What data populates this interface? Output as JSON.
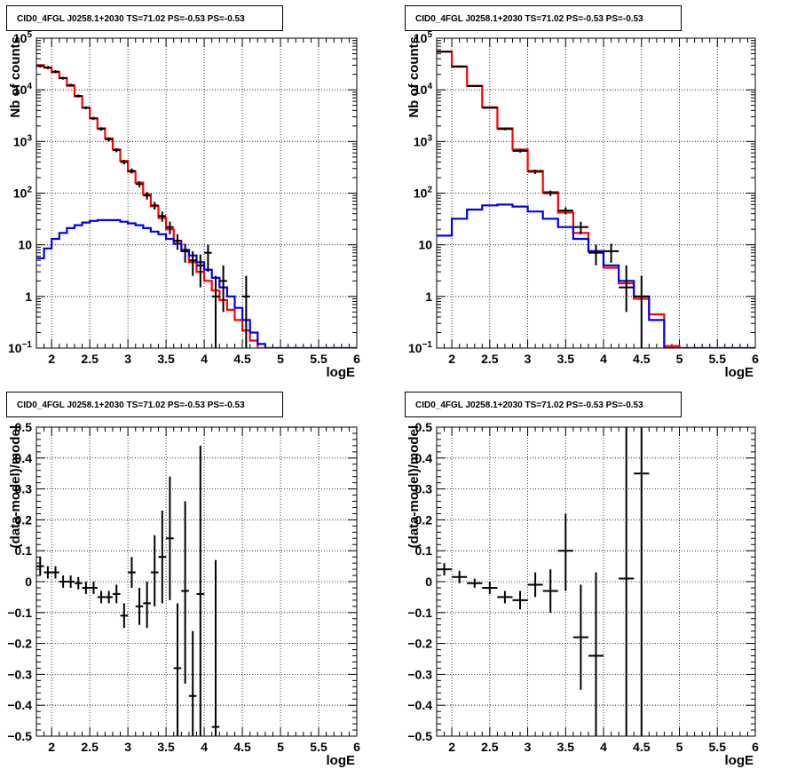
{
  "chart_data": [
    {
      "id": "counts-left",
      "type": "line",
      "title": "CID0_4FGL J0258.1+2030 TS=71.02 PS=-0.53 PS=-0.53",
      "xlabel": "logE",
      "ylabel": "Nb of counts",
      "xlim": [
        1.8,
        6.0
      ],
      "ylim": [
        0.1,
        100000
      ],
      "yscale": "log",
      "grid": true,
      "x_ticks": [
        {
          "v": 2,
          "label": "2"
        },
        {
          "v": 2.5,
          "label": "2.5"
        },
        {
          "v": 3,
          "label": "3"
        },
        {
          "v": 3.5,
          "label": "3.5"
        },
        {
          "v": 4,
          "label": "4"
        },
        {
          "v": 4.5,
          "label": "4.5"
        },
        {
          "v": 5,
          "label": "5"
        },
        {
          "v": 5.5,
          "label": "5.5"
        },
        {
          "v": 6,
          "label": "6"
        }
      ],
      "y_ticks": [
        {
          "v": 0.1,
          "base": "10",
          "exp": "−1"
        },
        {
          "v": 1,
          "base": "1",
          "exp": ""
        },
        {
          "v": 10,
          "base": "10",
          "exp": ""
        },
        {
          "v": 100,
          "base": "10",
          "exp": "2"
        },
        {
          "v": 1000,
          "base": "10",
          "exp": "3"
        },
        {
          "v": 10000,
          "base": "10",
          "exp": "4"
        },
        {
          "v": 100000,
          "base": "10",
          "exp": "5"
        }
      ],
      "bin_edges": [
        1.8,
        1.9,
        2.0,
        2.1,
        2.2,
        2.3,
        2.4,
        2.5,
        2.6,
        2.7,
        2.8,
        2.9,
        3.0,
        3.1,
        3.2,
        3.3,
        3.4,
        3.5,
        3.6,
        3.7,
        3.8,
        3.9,
        4.0,
        4.1,
        4.2,
        4.3,
        4.4,
        4.5,
        4.6,
        4.7,
        4.8,
        4.9,
        5.0,
        5.1,
        5.2,
        5.3,
        5.4,
        5.5,
        5.6,
        5.7,
        5.8,
        5.9,
        6.0
      ],
      "series": [
        {
          "color": "#ff0000",
          "values": [
            30000,
            27000,
            22000,
            17000,
            12000,
            7500,
            4500,
            2800,
            1800,
            1150,
            700,
            420,
            260,
            160,
            95,
            56,
            33,
            20,
            12,
            7.5,
            4.6,
            3.0,
            2.0,
            1.3,
            0.85,
            0.55,
            0.35,
            0.22,
            0.14,
            0.1,
            0.1,
            0.1,
            0.1,
            0.1,
            0.1,
            0.1,
            0.1,
            0.1,
            0.1,
            0.1,
            0.1,
            0.1
          ]
        },
        {
          "color": "#0000ee",
          "values": [
            5.5,
            8.5,
            13,
            17,
            21,
            24,
            27,
            29,
            30,
            30,
            30,
            28,
            26,
            24,
            21,
            18,
            16,
            13,
            10.5,
            8,
            6.2,
            4.6,
            3.3,
            2.3,
            1.5,
            1.0,
            0.6,
            0.35,
            0.2,
            0.12,
            0.1,
            0.1,
            0.1,
            0.1,
            0.1,
            0.1,
            0.1,
            0.1,
            0.1,
            0.1,
            0.1,
            0.1
          ]
        }
      ],
      "points": [
        {
          "x": 1.85,
          "y": 29000,
          "lo": 27000,
          "hi": 31000
        },
        {
          "x": 1.95,
          "y": 27000,
          "lo": 25000,
          "hi": 29000
        },
        {
          "x": 2.05,
          "y": 22500,
          "lo": 21000,
          "hi": 24000
        },
        {
          "x": 2.15,
          "y": 16800,
          "lo": 15800,
          "hi": 17800
        },
        {
          "x": 2.25,
          "y": 12300,
          "lo": 11500,
          "hi": 13100
        },
        {
          "x": 2.35,
          "y": 7600,
          "lo": 7100,
          "hi": 8100
        },
        {
          "x": 2.45,
          "y": 4500,
          "lo": 4200,
          "hi": 4800
        },
        {
          "x": 2.55,
          "y": 2800,
          "lo": 2600,
          "hi": 3000
        },
        {
          "x": 2.65,
          "y": 1750,
          "lo": 1620,
          "hi": 1880
        },
        {
          "x": 2.75,
          "y": 1100,
          "lo": 1000,
          "hi": 1200
        },
        {
          "x": 2.85,
          "y": 680,
          "lo": 620,
          "hi": 740
        },
        {
          "x": 2.95,
          "y": 400,
          "lo": 360,
          "hi": 440
        },
        {
          "x": 3.05,
          "y": 270,
          "lo": 240,
          "hi": 300
        },
        {
          "x": 3.15,
          "y": 150,
          "lo": 130,
          "hi": 170
        },
        {
          "x": 3.25,
          "y": 90,
          "lo": 75,
          "hi": 105
        },
        {
          "x": 3.35,
          "y": 58,
          "lo": 48,
          "hi": 68
        },
        {
          "x": 3.45,
          "y": 36,
          "lo": 28,
          "hi": 44
        },
        {
          "x": 3.55,
          "y": 22,
          "lo": 16,
          "hi": 28
        },
        {
          "x": 3.65,
          "y": 12,
          "lo": 8,
          "hi": 16
        },
        {
          "x": 3.75,
          "y": 7.5,
          "lo": 4.5,
          "hi": 10.5
        },
        {
          "x": 3.85,
          "y": 5,
          "lo": 2.5,
          "hi": 7.5
        },
        {
          "x": 3.95,
          "y": 4,
          "lo": 1.5,
          "hi": 6.5
        },
        {
          "x": 4.05,
          "y": 7,
          "lo": 3,
          "hi": 10
        },
        {
          "x": 4.15,
          "y": 1,
          "lo": 0.1,
          "hi": 2.5
        },
        {
          "x": 4.25,
          "y": 2,
          "lo": 0.5,
          "hi": 4
        },
        {
          "x": 4.55,
          "y": 1,
          "lo": 0.1,
          "hi": 2.5
        }
      ]
    },
    {
      "id": "counts-right",
      "type": "line",
      "title": "CID0_4FGL J0258.1+2030 TS=71.02 PS=-0.53 PS=-0.53",
      "xlabel": "logE",
      "ylabel": "Nb of counts",
      "xlim": [
        1.8,
        6.0
      ],
      "ylim": [
        0.1,
        100000
      ],
      "yscale": "log",
      "grid": true,
      "x_ticks": [
        {
          "v": 2,
          "label": "2"
        },
        {
          "v": 2.5,
          "label": "2.5"
        },
        {
          "v": 3,
          "label": "3"
        },
        {
          "v": 3.5,
          "label": "3.5"
        },
        {
          "v": 4,
          "label": "4"
        },
        {
          "v": 4.5,
          "label": "4.5"
        },
        {
          "v": 5,
          "label": "5"
        },
        {
          "v": 5.5,
          "label": "5.5"
        },
        {
          "v": 6,
          "label": "6"
        }
      ],
      "y_ticks": [
        {
          "v": 0.1,
          "base": "10",
          "exp": "−1"
        },
        {
          "v": 1,
          "base": "1",
          "exp": ""
        },
        {
          "v": 10,
          "base": "10",
          "exp": ""
        },
        {
          "v": 100,
          "base": "10",
          "exp": "2"
        },
        {
          "v": 1000,
          "base": "10",
          "exp": "3"
        },
        {
          "v": 10000,
          "base": "10",
          "exp": "4"
        },
        {
          "v": 100000,
          "base": "10",
          "exp": "5"
        }
      ],
      "bin_edges": [
        1.8,
        2.0,
        2.2,
        2.4,
        2.6,
        2.8,
        3.0,
        3.2,
        3.4,
        3.6,
        3.8,
        4.0,
        4.2,
        4.4,
        4.6,
        4.8,
        5.0,
        5.2,
        5.4,
        5.6,
        5.8,
        6.0
      ],
      "series": [
        {
          "color": "#ff0000",
          "values": [
            55000,
            28000,
            12000,
            4600,
            1800,
            700,
            270,
            105,
            42,
            17,
            7.5,
            3.6,
            1.8,
            0.9,
            0.45,
            0.11,
            0.1,
            0.1,
            0.1,
            0.1,
            0.1
          ]
        },
        {
          "color": "#0000ee",
          "values": [
            15,
            32,
            48,
            58,
            60,
            55,
            44,
            32,
            22,
            13,
            7.5,
            4,
            2,
            1,
            0.35,
            0.1,
            0.1,
            0.1,
            0.1,
            0.1,
            0.1
          ]
        }
      ],
      "points": [
        {
          "x": 1.9,
          "y": 55000,
          "lo": 53000,
          "hi": 57000
        },
        {
          "x": 2.1,
          "y": 28500,
          "lo": 27500,
          "hi": 29500
        },
        {
          "x": 2.3,
          "y": 11800,
          "lo": 11300,
          "hi": 12300
        },
        {
          "x": 2.5,
          "y": 4500,
          "lo": 4300,
          "hi": 4700
        },
        {
          "x": 2.7,
          "y": 1750,
          "lo": 1650,
          "hi": 1850
        },
        {
          "x": 2.9,
          "y": 660,
          "lo": 610,
          "hi": 710
        },
        {
          "x": 3.1,
          "y": 260,
          "lo": 235,
          "hi": 285
        },
        {
          "x": 3.3,
          "y": 100,
          "lo": 88,
          "hi": 112
        },
        {
          "x": 3.5,
          "y": 46,
          "lo": 39,
          "hi": 53
        },
        {
          "x": 3.7,
          "y": 22,
          "lo": 16,
          "hi": 28
        },
        {
          "x": 3.9,
          "y": 7,
          "lo": 4,
          "hi": 10
        },
        {
          "x": 4.1,
          "y": 7.5,
          "lo": 4.5,
          "hi": 10.5
        },
        {
          "x": 4.3,
          "y": 1.5,
          "lo": 0.5,
          "hi": 4
        },
        {
          "x": 4.5,
          "y": 1,
          "lo": 0.1,
          "hi": 2.5
        }
      ]
    },
    {
      "id": "residual-left",
      "type": "scatter",
      "title": "CID0_4FGL J0258.1+2030 TS=71.02 PS=-0.53 PS=-0.53",
      "xlabel": "logE",
      "ylabel": "(data-model)/model",
      "xlim": [
        1.8,
        6.0
      ],
      "ylim": [
        -0.5,
        0.5
      ],
      "yscale": "linear",
      "grid": true,
      "x_ticks": [
        {
          "v": 2,
          "label": "2"
        },
        {
          "v": 2.5,
          "label": "2.5"
        },
        {
          "v": 3,
          "label": "3"
        },
        {
          "v": 3.5,
          "label": "3.5"
        },
        {
          "v": 4,
          "label": "4"
        },
        {
          "v": 4.5,
          "label": "4.5"
        },
        {
          "v": 5,
          "label": "5"
        },
        {
          "v": 5.5,
          "label": "5.5"
        },
        {
          "v": 6,
          "label": "6"
        }
      ],
      "y_ticks": [
        {
          "v": -0.5,
          "label": "−0.5"
        },
        {
          "v": -0.4,
          "label": "−0.4"
        },
        {
          "v": -0.3,
          "label": "−0.3"
        },
        {
          "v": -0.2,
          "label": "−0.2"
        },
        {
          "v": -0.1,
          "label": "−0.1"
        },
        {
          "v": 0,
          "label": "0"
        },
        {
          "v": 0.1,
          "label": "0.1"
        },
        {
          "v": 0.2,
          "label": "0.2"
        },
        {
          "v": 0.3,
          "label": "0.3"
        },
        {
          "v": 0.4,
          "label": "0.4"
        },
        {
          "v": 0.5,
          "label": "0.5"
        }
      ],
      "xerr": 0.05,
      "points": [
        {
          "x": 1.85,
          "y": 0.05,
          "lo": 0.02,
          "hi": 0.08
        },
        {
          "x": 1.95,
          "y": 0.03,
          "lo": 0.01,
          "hi": 0.05
        },
        {
          "x": 2.05,
          "y": 0.03,
          "lo": 0.01,
          "hi": 0.05
        },
        {
          "x": 2.15,
          "y": 0.0,
          "lo": -0.02,
          "hi": 0.02
        },
        {
          "x": 2.25,
          "y": 0.0,
          "lo": -0.02,
          "hi": 0.02
        },
        {
          "x": 2.35,
          "y": -0.005,
          "lo": -0.025,
          "hi": 0.015
        },
        {
          "x": 2.45,
          "y": -0.02,
          "lo": -0.04,
          "hi": 0.0
        },
        {
          "x": 2.55,
          "y": -0.02,
          "lo": -0.04,
          "hi": 0.0
        },
        {
          "x": 2.65,
          "y": -0.05,
          "lo": -0.07,
          "hi": -0.03
        },
        {
          "x": 2.75,
          "y": -0.05,
          "lo": -0.07,
          "hi": -0.03
        },
        {
          "x": 2.85,
          "y": -0.04,
          "lo": -0.07,
          "hi": -0.01
        },
        {
          "x": 2.95,
          "y": -0.11,
          "lo": -0.15,
          "hi": -0.07
        },
        {
          "x": 3.05,
          "y": 0.03,
          "lo": -0.02,
          "hi": 0.08
        },
        {
          "x": 3.15,
          "y": -0.08,
          "lo": -0.14,
          "hi": -0.02
        },
        {
          "x": 3.25,
          "y": -0.07,
          "lo": -0.15,
          "hi": 0.0
        },
        {
          "x": 3.35,
          "y": 0.03,
          "lo": -0.08,
          "hi": 0.15
        },
        {
          "x": 3.45,
          "y": 0.08,
          "lo": -0.07,
          "hi": 0.23
        },
        {
          "x": 3.55,
          "y": 0.14,
          "lo": -0.06,
          "hi": 0.34
        },
        {
          "x": 3.65,
          "y": -0.28,
          "lo": -0.56,
          "hi": -0.07
        },
        {
          "x": 3.75,
          "y": -0.03,
          "lo": -0.33,
          "hi": 0.26
        },
        {
          "x": 3.85,
          "y": -0.37,
          "lo": -0.56,
          "hi": -0.16
        },
        {
          "x": 3.95,
          "y": -0.04,
          "lo": -0.56,
          "hi": 0.44
        },
        {
          "x": 4.15,
          "y": -0.47,
          "lo": -0.56,
          "hi": 0.07
        }
      ]
    },
    {
      "id": "residual-right",
      "type": "scatter",
      "title": "CID0_4FGL J0258.1+2030 TS=71.02 PS=-0.53 PS=-0.53",
      "xlabel": "logE",
      "ylabel": "(data-model)/model",
      "xlim": [
        1.8,
        6.0
      ],
      "ylim": [
        -0.5,
        0.5
      ],
      "yscale": "linear",
      "grid": true,
      "x_ticks": [
        {
          "v": 2,
          "label": "2"
        },
        {
          "v": 2.5,
          "label": "2.5"
        },
        {
          "v": 3,
          "label": "3"
        },
        {
          "v": 3.5,
          "label": "3.5"
        },
        {
          "v": 4,
          "label": "4"
        },
        {
          "v": 4.5,
          "label": "4.5"
        },
        {
          "v": 5,
          "label": "5"
        },
        {
          "v": 5.5,
          "label": "5.5"
        },
        {
          "v": 6,
          "label": "6"
        }
      ],
      "y_ticks": [
        {
          "v": -0.5,
          "label": "−0.5"
        },
        {
          "v": -0.4,
          "label": "−0.4"
        },
        {
          "v": -0.3,
          "label": "−0.3"
        },
        {
          "v": -0.2,
          "label": "−0.2"
        },
        {
          "v": -0.1,
          "label": "−0.1"
        },
        {
          "v": 0,
          "label": "0"
        },
        {
          "v": 0.1,
          "label": "0.1"
        },
        {
          "v": 0.2,
          "label": "0.2"
        },
        {
          "v": 0.3,
          "label": "0.3"
        },
        {
          "v": 0.4,
          "label": "0.4"
        },
        {
          "v": 0.5,
          "label": "0.5"
        }
      ],
      "xerr": 0.1,
      "points": [
        {
          "x": 1.9,
          "y": 0.04,
          "lo": 0.02,
          "hi": 0.06
        },
        {
          "x": 2.1,
          "y": 0.015,
          "lo": -0.005,
          "hi": 0.035
        },
        {
          "x": 2.3,
          "y": -0.005,
          "lo": -0.02,
          "hi": 0.01
        },
        {
          "x": 2.5,
          "y": -0.02,
          "lo": -0.04,
          "hi": 0.0
        },
        {
          "x": 2.7,
          "y": -0.05,
          "lo": -0.07,
          "hi": -0.03
        },
        {
          "x": 2.9,
          "y": -0.06,
          "lo": -0.09,
          "hi": -0.03
        },
        {
          "x": 3.1,
          "y": -0.01,
          "lo": -0.05,
          "hi": 0.03
        },
        {
          "x": 3.3,
          "y": -0.03,
          "lo": -0.1,
          "hi": 0.04
        },
        {
          "x": 3.5,
          "y": 0.1,
          "lo": -0.03,
          "hi": 0.22
        },
        {
          "x": 3.7,
          "y": -0.18,
          "lo": -0.35,
          "hi": -0.01
        },
        {
          "x": 3.9,
          "y": -0.24,
          "lo": -0.56,
          "hi": 0.03
        },
        {
          "x": 4.3,
          "y": 0.01,
          "lo": -0.56,
          "hi": 0.56
        },
        {
          "x": 4.5,
          "y": 0.35,
          "lo": -0.56,
          "hi": 0.56
        }
      ]
    }
  ]
}
